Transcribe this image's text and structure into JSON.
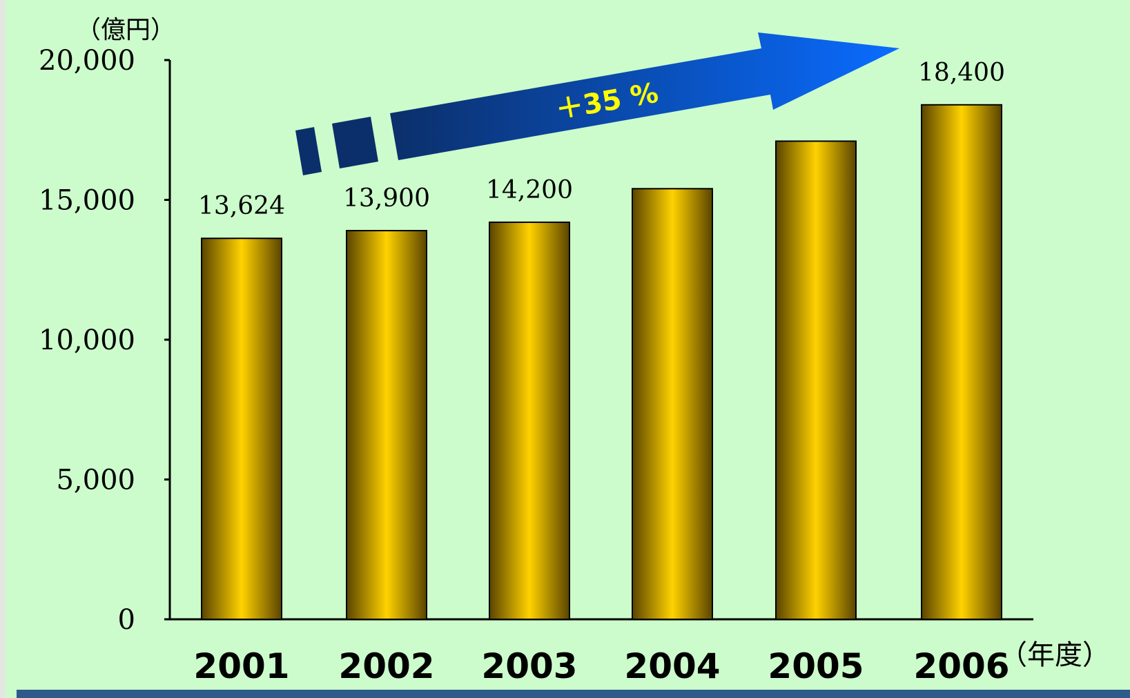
{
  "chart_data": {
    "type": "bar",
    "unit_label": "（億円）",
    "xlabel": "（年度）",
    "categories": [
      "2001",
      "2002",
      "2003",
      "2004",
      "2005",
      "2006"
    ],
    "values": [
      13624,
      13900,
      14200,
      15400,
      17100,
      18400
    ],
    "data_labels": [
      "13,624",
      "13,900",
      "14,200",
      "",
      "",
      "18,400"
    ],
    "ylim": [
      0,
      20000
    ],
    "y_ticks": [
      0,
      5000,
      10000,
      15000,
      20000
    ],
    "y_tick_labels": [
      "0",
      "5,000",
      "10,000",
      "15,000",
      "20,000"
    ],
    "annotation": "＋35 %",
    "grid": false,
    "legend": "none",
    "colors": {
      "background": "#ccfccc",
      "bar_center": "#ffd200",
      "bar_edge": "#5a4400",
      "arrow_start": "#0b2f6a",
      "arrow_end": "#0a6cff",
      "annotation_text": "#ffff00",
      "bottom_bar": "#2e5a8c"
    }
  }
}
